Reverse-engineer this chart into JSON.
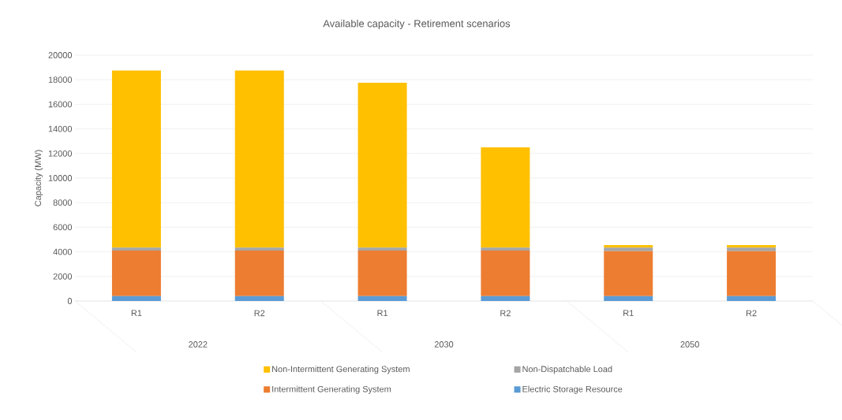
{
  "chart_data": {
    "type": "bar",
    "stacked": true,
    "title": "Available capacity - Retirement scenarios",
    "ylabel": "Capacity (MW)",
    "categories": [
      "R1",
      "R2",
      "R1",
      "R2",
      "R1",
      "R2"
    ],
    "annotations": [
      "2022",
      "2030",
      "2050"
    ],
    "series": [
      {
        "name": "Electric Storage Resource",
        "color": "#5b9bd5",
        "values": [
          400,
          400,
          400,
          400,
          400,
          400
        ]
      },
      {
        "name": "Intermittent Generating System",
        "color": "#ed7d31",
        "values": [
          3700,
          3700,
          3700,
          3700,
          3650,
          3650
        ]
      },
      {
        "name": "Non-Dispatchable Load",
        "color": "#a5a5a5",
        "values": [
          250,
          250,
          250,
          250,
          300,
          300
        ]
      },
      {
        "name": "Non-Intermittent Generating System",
        "color": "#ffc000",
        "values": [
          14400,
          14400,
          13400,
          8150,
          200,
          200
        ]
      }
    ],
    "ylim": [
      0,
      20000
    ],
    "yticks": [
      0,
      2000,
      4000,
      6000,
      8000,
      10000,
      12000,
      14000,
      16000,
      18000,
      20000
    ],
    "grid": "y",
    "legend": "bottom"
  }
}
